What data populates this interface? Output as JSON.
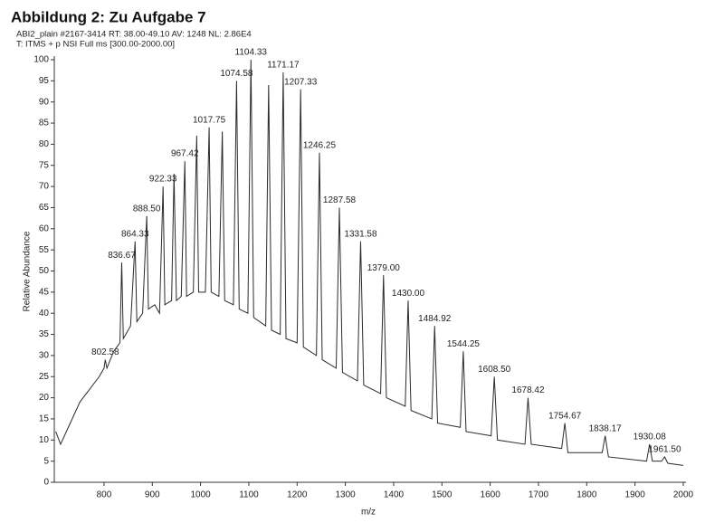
{
  "chart_data": {
    "type": "line",
    "title": "Abbildung 2: Zu Aufgabe 7",
    "header_lines": [
      "ABI2_plain #2167-3414  RT: 38.00-49.10  AV: 1248  NL: 2.86E4",
      "T: ITMS + p NSI Full ms [300.00-2000.00]"
    ],
    "x_label": "m/z",
    "y_label": "Relative Abundance",
    "xlim": [
      697,
      2000
    ],
    "xticks": [
      800,
      900,
      1000,
      1100,
      1200,
      1300,
      1400,
      1500,
      1600,
      1700,
      1800,
      1900,
      2000
    ],
    "ylim": [
      0,
      100
    ],
    "yticks": [
      0,
      5,
      10,
      15,
      20,
      25,
      30,
      35,
      40,
      45,
      50,
      55,
      60,
      65,
      70,
      75,
      80,
      85,
      90,
      95,
      100
    ],
    "series": [
      {
        "color": "#2b2b2b",
        "x": [
          700,
          710,
          730,
          750,
          770,
          790,
          800,
          802.58,
          806,
          820,
          833,
          836.67,
          840,
          855,
          864.33,
          868,
          880,
          888.5,
          892,
          905,
          915,
          922.33,
          926,
          940,
          945,
          950,
          960,
          967.42,
          971,
          985,
          992,
          996,
          1010,
          1017.75,
          1022,
          1038,
          1045,
          1050,
          1068,
          1074.58,
          1080,
          1098,
          1104.33,
          1110,
          1135,
          1141,
          1147,
          1165,
          1171.17,
          1177,
          1200,
          1207.33,
          1213,
          1240,
          1246.25,
          1252,
          1281,
          1287.58,
          1294,
          1325,
          1331.58,
          1338,
          1373,
          1379,
          1385,
          1424,
          1430,
          1436,
          1479,
          1484.92,
          1491,
          1538,
          1544.25,
          1550,
          1602,
          1608.5,
          1615,
          1672,
          1678.42,
          1685,
          1748,
          1754.67,
          1761,
          1832,
          1838.17,
          1845,
          1924,
          1930.08,
          1936,
          1955,
          1961.5,
          1968,
          2000
        ],
        "values": [
          12,
          9,
          14,
          19,
          22,
          25,
          27,
          29,
          27,
          31,
          33,
          52,
          34,
          37,
          57,
          38,
          40,
          63,
          41,
          42,
          40,
          70,
          42,
          43,
          73,
          43,
          44,
          76,
          44,
          45,
          82,
          45,
          45,
          84,
          45,
          44,
          83,
          43,
          42,
          95,
          41,
          40,
          100,
          39,
          37,
          94,
          36,
          35,
          97,
          34,
          33,
          93,
          32,
          30,
          78,
          29,
          27,
          65,
          26,
          24,
          57,
          23,
          21,
          49,
          20,
          18,
          43,
          17,
          15,
          37,
          14,
          13,
          31,
          12,
          11,
          25,
          10,
          9,
          20,
          9,
          8,
          14,
          7,
          7,
          11,
          6,
          5,
          9,
          5,
          5,
          6,
          4.5,
          4
        ]
      }
    ],
    "annotations": [
      {
        "x": 802.58,
        "y": 29,
        "label": "802.58"
      },
      {
        "x": 836.67,
        "y": 52,
        "label": "836.67"
      },
      {
        "x": 864.33,
        "y": 57,
        "label": "864.33"
      },
      {
        "x": 888.5,
        "y": 63,
        "label": "888.50"
      },
      {
        "x": 922.33,
        "y": 70,
        "label": "922.33"
      },
      {
        "x": 967.42,
        "y": 76,
        "label": "967.42"
      },
      {
        "x": 1017.75,
        "y": 84,
        "label": "1017.75"
      },
      {
        "x": 1074.58,
        "y": 95,
        "label": "1074.58"
      },
      {
        "x": 1104.33,
        "y": 100,
        "label": "1104.33"
      },
      {
        "x": 1171.17,
        "y": 97,
        "label": "1171.17"
      },
      {
        "x": 1207.33,
        "y": 93,
        "label": "1207.33"
      },
      {
        "x": 1246.25,
        "y": 78,
        "label": "1246.25"
      },
      {
        "x": 1287.58,
        "y": 65,
        "label": "1287.58"
      },
      {
        "x": 1331.58,
        "y": 57,
        "label": "1331.58"
      },
      {
        "x": 1379,
        "y": 49,
        "label": "1379.00"
      },
      {
        "x": 1430,
        "y": 43,
        "label": "1430.00"
      },
      {
        "x": 1484.92,
        "y": 37,
        "label": "1484.92"
      },
      {
        "x": 1544.25,
        "y": 31,
        "label": "1544.25"
      },
      {
        "x": 1608.5,
        "y": 25,
        "label": "1608.50"
      },
      {
        "x": 1678.42,
        "y": 20,
        "label": "1678.42"
      },
      {
        "x": 1754.67,
        "y": 14,
        "label": "1754.67"
      },
      {
        "x": 1838.17,
        "y": 11,
        "label": "1838.17"
      },
      {
        "x": 1930.08,
        "y": 9,
        "label": "1930.08"
      },
      {
        "x": 1961.5,
        "y": 6,
        "label": "1961.50"
      }
    ]
  }
}
